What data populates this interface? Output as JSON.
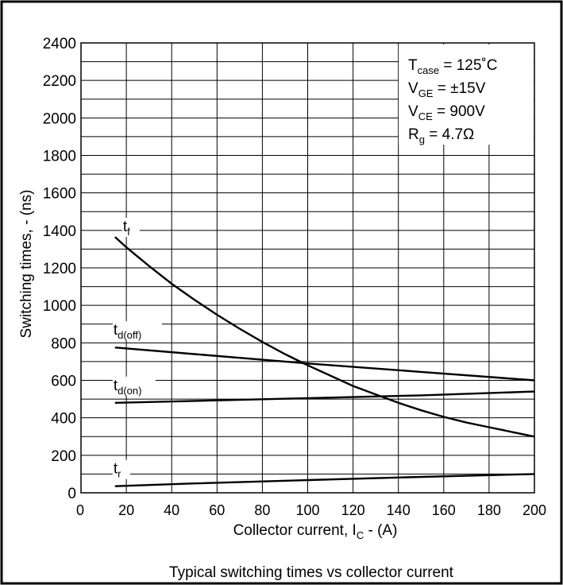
{
  "chart_data": {
    "type": "line",
    "title": "Typical switching times vs collector current",
    "xlabel": {
      "main": "Collector current, I",
      "sub": "C",
      "tail": " - (A)"
    },
    "ylabel": "Switching times, - (ns)",
    "xlim": [
      0,
      200
    ],
    "ylim": [
      0,
      2400
    ],
    "x_ticks": [
      0,
      20,
      40,
      60,
      80,
      100,
      120,
      140,
      160,
      180,
      200
    ],
    "y_ticks": [
      0,
      200,
      400,
      600,
      800,
      1000,
      1200,
      1400,
      1600,
      1800,
      2000,
      2200,
      2400
    ],
    "grid": true,
    "conditions": [
      {
        "main": "T",
        "sub": "case",
        "tail": " = 125˚C"
      },
      {
        "main": "V",
        "sub": "GE",
        "tail": " = ±15V"
      },
      {
        "main": "V",
        "sub": "CE",
        "tail": " = 900V"
      },
      {
        "main": "R",
        "sub": "g",
        "tail": " = 4.7Ω"
      }
    ],
    "series": [
      {
        "name": "f",
        "label_main": "t",
        "label_sub": "f",
        "x": [
          15,
          20,
          30,
          40,
          50,
          60,
          70,
          80,
          90,
          100,
          110,
          120,
          130,
          140,
          150,
          160,
          170,
          180,
          190,
          200
        ],
        "y": [
          1365,
          1310,
          1210,
          1115,
          1030,
          950,
          875,
          805,
          740,
          680,
          625,
          570,
          525,
          480,
          440,
          405,
          375,
          350,
          325,
          300
        ]
      },
      {
        "name": "d(off)",
        "label_main": "t",
        "label_sub": "d(off)",
        "x": [
          15,
          50,
          100,
          150,
          200
        ],
        "y": [
          775,
          740,
          690,
          645,
          600
        ]
      },
      {
        "name": "d(on)",
        "label_main": "t",
        "label_sub": "d(on)",
        "x": [
          15,
          50,
          100,
          150,
          200
        ],
        "y": [
          480,
          490,
          505,
          520,
          540
        ]
      },
      {
        "name": "r",
        "label_main": "t",
        "label_sub": "r",
        "x": [
          15,
          50,
          100,
          150,
          200
        ],
        "y": [
          35,
          50,
          68,
          85,
          100
        ]
      }
    ]
  }
}
